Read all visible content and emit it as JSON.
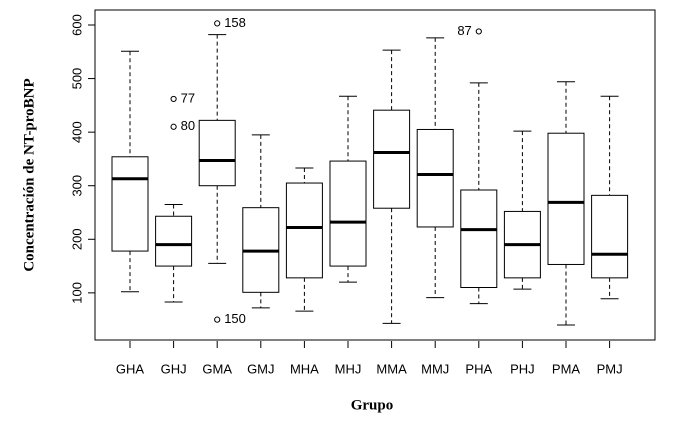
{
  "chart_data": {
    "type": "box",
    "xlabel": "Grupo",
    "ylabel": "Concentración de NT-proBNP",
    "categories": [
      "GHA",
      "GHJ",
      "GMA",
      "GMJ",
      "MHA",
      "MHJ",
      "MMA",
      "MMJ",
      "PHA",
      "PHJ",
      "PMA",
      "PMJ"
    ],
    "boxes": [
      {
        "low": 102,
        "q1": 178,
        "median": 313,
        "q3": 354,
        "high": 551
      },
      {
        "low": 83,
        "q1": 150,
        "median": 190,
        "q3": 243,
        "high": 265
      },
      {
        "low": 155,
        "q1": 300,
        "median": 347,
        "q3": 422,
        "high": 582
      },
      {
        "low": 72,
        "q1": 101,
        "median": 178,
        "q3": 259,
        "high": 395
      },
      {
        "low": 66,
        "q1": 128,
        "median": 222,
        "q3": 305,
        "high": 333
      },
      {
        "low": 120,
        "q1": 150,
        "median": 232,
        "q3": 346,
        "high": 467
      },
      {
        "low": 43,
        "q1": 258,
        "median": 362,
        "q3": 441,
        "high": 553
      },
      {
        "low": 91,
        "q1": 223,
        "median": 321,
        "q3": 405,
        "high": 576
      },
      {
        "low": 80,
        "q1": 110,
        "median": 218,
        "q3": 292,
        "high": 492
      },
      {
        "low": 107,
        "q1": 128,
        "median": 190,
        "q3": 252,
        "high": 402
      },
      {
        "low": 40,
        "q1": 153,
        "median": 269,
        "q3": 398,
        "high": 494
      },
      {
        "low": 89,
        "q1": 128,
        "median": 172,
        "q3": 282,
        "high": 467
      }
    ],
    "outliers": [
      {
        "category": "GHJ",
        "value": 462,
        "label": "77"
      },
      {
        "category": "GHJ",
        "value": 410,
        "label": "80"
      },
      {
        "category": "GMA",
        "value": 603,
        "label": "158"
      },
      {
        "category": "GMA",
        "value": 50,
        "label": "150"
      },
      {
        "category": "PHA",
        "value": 588,
        "label": "87"
      }
    ],
    "ylim": [
      12,
      628
    ],
    "yticks": [
      100,
      200,
      300,
      400,
      500,
      600
    ]
  }
}
